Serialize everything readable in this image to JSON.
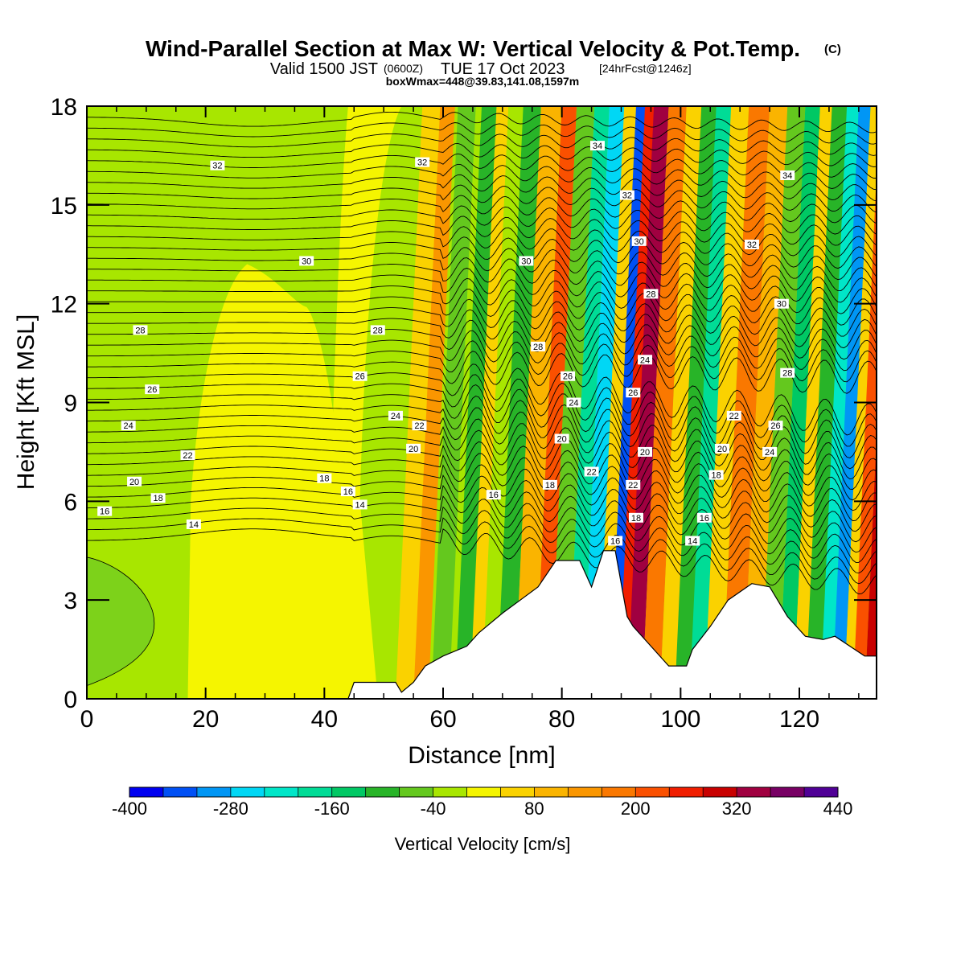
{
  "title": {
    "main": "Wind-Parallel Section at Max W: Vertical Velocity & Pot.Temp.",
    "mark": "(C)",
    "valid_a": "Valid 1500 JST",
    "valid_b": "(0600Z)",
    "valid_c": "TUE 17 Oct 2023",
    "valid_d": "[24hrFcst@1246z]",
    "box": "boxWmax=448@39.83,141.08,1597m"
  },
  "chart_data": {
    "type": "heatmap",
    "xlabel": "Distance [nm]",
    "ylabel": "Height [Kft MSL]",
    "xlim": [
      0,
      133
    ],
    "ylim": [
      0,
      18
    ],
    "x_ticks": [
      0,
      20,
      40,
      60,
      80,
      100,
      120
    ],
    "y_ticks": [
      0,
      3,
      6,
      9,
      12,
      15,
      18
    ],
    "colorbar": {
      "label": "Vertical Velocity [cm/s]",
      "levels": [
        -400,
        -360,
        -320,
        -280,
        -240,
        -200,
        -160,
        -120,
        -80,
        -40,
        0,
        40,
        80,
        120,
        160,
        200,
        240,
        280,
        320,
        360,
        400,
        440
      ],
      "tick_labels": [
        "-400",
        "-280",
        "-160",
        "-40",
        "80",
        "200",
        "320",
        "440"
      ],
      "colors": [
        "#0000f0",
        "#0050f5",
        "#0096f5",
        "#00d7f5",
        "#00e6c8",
        "#00dc96",
        "#00c864",
        "#28b428",
        "#64c81e",
        "#a8e600",
        "#f5f500",
        "#fad200",
        "#fab400",
        "#fa9600",
        "#fa7800",
        "#fa5000",
        "#f01e00",
        "#c80000",
        "#a00040",
        "#780064",
        "#500096"
      ]
    },
    "terrain": [
      [
        0,
        0
      ],
      [
        44,
        0
      ],
      [
        45,
        0.5
      ],
      [
        52,
        0.5
      ],
      [
        53,
        0.2
      ],
      [
        55,
        0.5
      ],
      [
        57,
        1
      ],
      [
        60,
        1.3
      ],
      [
        64,
        1.6
      ],
      [
        66,
        2
      ],
      [
        70,
        2.6
      ],
      [
        73,
        3
      ],
      [
        76,
        3.4
      ],
      [
        79,
        4.2
      ],
      [
        83,
        4.2
      ],
      [
        85,
        3.4
      ],
      [
        87,
        4.5
      ],
      [
        89,
        4.5
      ],
      [
        91,
        2.5
      ],
      [
        92,
        2.2
      ],
      [
        95,
        1.6
      ],
      [
        98,
        1
      ],
      [
        101,
        1
      ],
      [
        102,
        1.5
      ],
      [
        105,
        2.2
      ],
      [
        108,
        3
      ],
      [
        112,
        3.5
      ],
      [
        115,
        3.4
      ],
      [
        118,
        2.5
      ],
      [
        121,
        1.9
      ],
      [
        124,
        1.8
      ],
      [
        126,
        1.9
      ],
      [
        131,
        1.3
      ],
      [
        133,
        1.3
      ]
    ],
    "theta_contours": [
      14,
      16,
      18,
      20,
      22,
      24,
      26,
      28,
      30,
      32,
      34
    ],
    "contour_labels": [
      {
        "text": "32",
        "x": 22,
        "y": 16.2
      },
      {
        "text": "32",
        "x": 56.5,
        "y": 16.3
      },
      {
        "text": "30",
        "x": 37,
        "y": 13.3
      },
      {
        "text": "30",
        "x": 74,
        "y": 13.3
      },
      {
        "text": "28",
        "x": 9,
        "y": 11.2
      },
      {
        "text": "28",
        "x": 49,
        "y": 11.2
      },
      {
        "text": "26",
        "x": 11,
        "y": 9.4
      },
      {
        "text": "26",
        "x": 46,
        "y": 9.8
      },
      {
        "text": "24",
        "x": 7,
        "y": 8.3
      },
      {
        "text": "24",
        "x": 52,
        "y": 8.6
      },
      {
        "text": "22",
        "x": 17,
        "y": 7.4
      },
      {
        "text": "22",
        "x": 56,
        "y": 8.3
      },
      {
        "text": "20",
        "x": 8,
        "y": 6.6
      },
      {
        "text": "20",
        "x": 55,
        "y": 7.6
      },
      {
        "text": "18",
        "x": 12,
        "y": 6.1
      },
      {
        "text": "18",
        "x": 40,
        "y": 6.7
      },
      {
        "text": "16",
        "x": 3,
        "y": 5.7
      },
      {
        "text": "16",
        "x": 44,
        "y": 6.3
      },
      {
        "text": "14",
        "x": 18,
        "y": 5.3
      },
      {
        "text": "14",
        "x": 46,
        "y": 5.9
      },
      {
        "text": "34",
        "x": 86,
        "y": 16.8
      },
      {
        "text": "32",
        "x": 91,
        "y": 15.3
      },
      {
        "text": "30",
        "x": 93,
        "y": 13.9
      },
      {
        "text": "28",
        "x": 95,
        "y": 12.3
      },
      {
        "text": "24",
        "x": 94,
        "y": 10.3
      },
      {
        "text": "26",
        "x": 92,
        "y": 9.3
      },
      {
        "text": "20",
        "x": 94,
        "y": 7.5
      },
      {
        "text": "22",
        "x": 92,
        "y": 6.5
      },
      {
        "text": "18",
        "x": 92.5,
        "y": 5.5
      },
      {
        "text": "16",
        "x": 89,
        "y": 4.8
      },
      {
        "text": "28",
        "x": 76,
        "y": 10.7
      },
      {
        "text": "26",
        "x": 81,
        "y": 9.8
      },
      {
        "text": "24",
        "x": 82,
        "y": 9.0
      },
      {
        "text": "20",
        "x": 80,
        "y": 7.9
      },
      {
        "text": "22",
        "x": 85,
        "y": 6.9
      },
      {
        "text": "18",
        "x": 78,
        "y": 6.5
      },
      {
        "text": "16",
        "x": 68.5,
        "y": 6.2
      },
      {
        "text": "34",
        "x": 118,
        "y": 15.9
      },
      {
        "text": "32",
        "x": 112,
        "y": 13.8
      },
      {
        "text": "30",
        "x": 117,
        "y": 12.0
      },
      {
        "text": "28",
        "x": 118,
        "y": 9.9
      },
      {
        "text": "22",
        "x": 109,
        "y": 8.6
      },
      {
        "text": "26",
        "x": 116,
        "y": 8.3
      },
      {
        "text": "24",
        "x": 115,
        "y": 7.5
      },
      {
        "text": "20",
        "x": 107,
        "y": 7.6
      },
      {
        "text": "18",
        "x": 106,
        "y": 6.8
      },
      {
        "text": "16",
        "x": 104,
        "y": 5.5
      },
      {
        "text": "14",
        "x": 102,
        "y": 4.8
      }
    ]
  }
}
